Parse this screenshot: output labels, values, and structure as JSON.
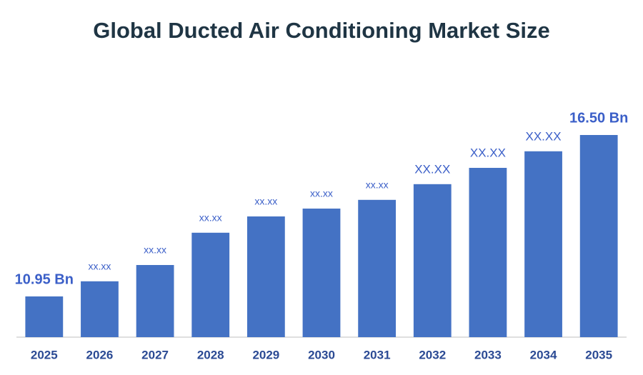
{
  "chart_data": {
    "type": "bar",
    "title": "Global Ducted Air Conditioning Market Size",
    "categories": [
      "2025",
      "2026",
      "2027",
      "2028",
      "2029",
      "2030",
      "2031",
      "2032",
      "2033",
      "2034",
      "2035"
    ],
    "values": [
      10.95,
      11.47,
      12.03,
      13.14,
      13.7,
      13.97,
      14.27,
      14.81,
      15.37,
      15.94,
      16.5
    ],
    "value_labels": [
      "10.95 Bn",
      "xx.xx",
      "xx.xx",
      "xx.xx",
      "xx.xx",
      "xx.xx",
      "xx.xx",
      "XX.XX",
      "XX.XX",
      "XX.XX",
      "16.50 Bn"
    ],
    "color": "#4472c4",
    "ylim": [
      9.55,
      17.2
    ]
  }
}
